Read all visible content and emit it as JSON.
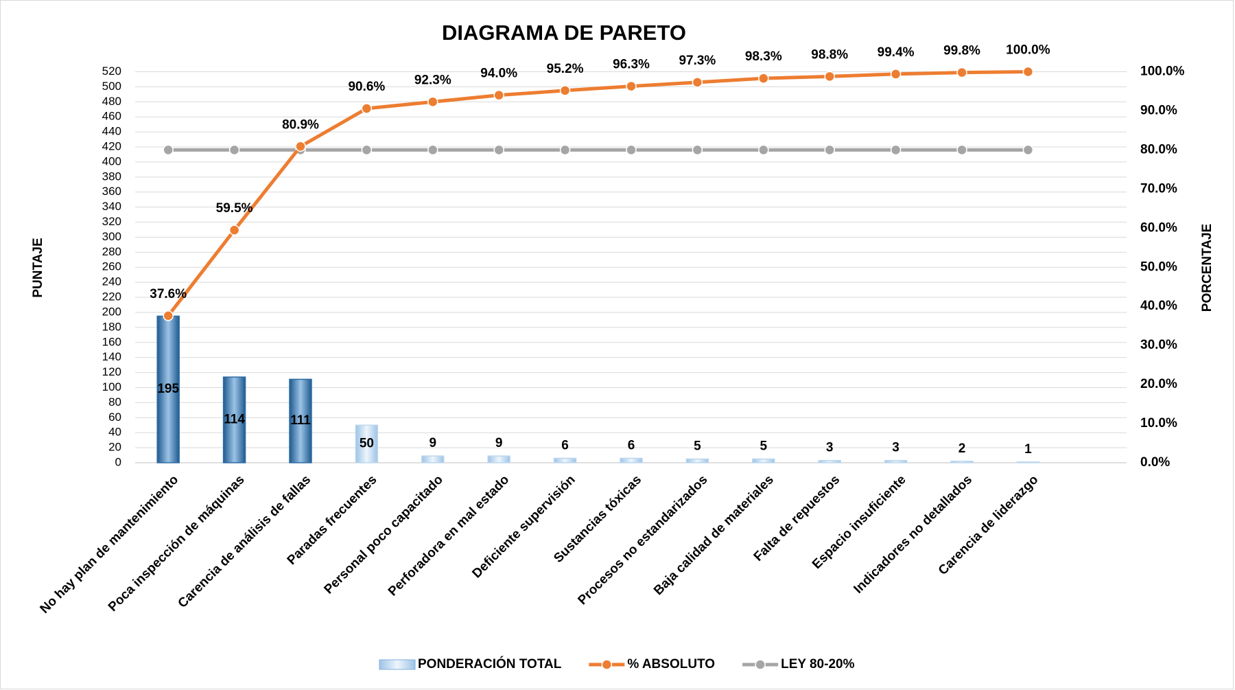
{
  "chart_data": {
    "type": "pareto",
    "title": "DIAGRAMA DE PARETO",
    "y_label": "PUNTAJE",
    "y2_label": "PORCENTAJE",
    "categories": [
      "No hay plan de mantenimiento",
      "Poca inspección de máquinas",
      "Carencia de análisis de fallas",
      "Paradas frecuentes",
      "Personal poco capacitado",
      "Perforadora en mal estado",
      "Deficiente supervisión",
      "Sustancias tóxicas",
      "Procesos no estandarizados",
      "Baja calidad de materiales",
      "Falta de repuestos",
      "Espacio insuficiente",
      "Indicadores no detallados",
      "Carencia de liderazgo"
    ],
    "series": [
      {
        "name": "PONDERACIÓN TOTAL",
        "type": "bar",
        "color": "#bdd7ee",
        "bar_colors": [
          "#2e6da4",
          "#2e6da4",
          "#2e6da4",
          "#bdd7ee",
          "#bdd7ee",
          "#bdd7ee",
          "#bdd7ee",
          "#bdd7ee",
          "#bdd7ee",
          "#bdd7ee",
          "#bdd7ee",
          "#bdd7ee",
          "#bdd7ee",
          "#bdd7ee"
        ],
        "values": [
          195,
          114,
          111,
          50,
          9,
          9,
          6,
          6,
          5,
          5,
          3,
          3,
          2,
          1
        ]
      },
      {
        "name": "% ABSOLUTO",
        "type": "line",
        "axis": "y2",
        "color": "#ed7d31",
        "values": [
          37.6,
          59.5,
          80.9,
          90.6,
          92.3,
          94.0,
          95.2,
          96.3,
          97.3,
          98.3,
          98.8,
          99.4,
          99.8,
          100.0
        ],
        "value_labels": [
          "37.6%",
          "59.5%",
          "80.9%",
          "90.6%",
          "92.3%",
          "94.0%",
          "95.2%",
          "96.3%",
          "97.3%",
          "98.3%",
          "98.8%",
          "99.4%",
          "99.8%",
          "100.0%"
        ]
      },
      {
        "name": "LEY 80-20%",
        "type": "line",
        "axis": "y2",
        "color": "#a5a5a5",
        "values": [
          80,
          80,
          80,
          80,
          80,
          80,
          80,
          80,
          80,
          80,
          80,
          80,
          80,
          80
        ]
      }
    ],
    "ylim": [
      0,
      520
    ],
    "yticks": [
      0,
      20,
      40,
      60,
      80,
      100,
      120,
      140,
      160,
      180,
      200,
      220,
      240,
      260,
      280,
      300,
      320,
      340,
      360,
      380,
      400,
      420,
      440,
      460,
      480,
      500,
      520
    ],
    "y2lim": [
      0,
      100
    ],
    "y2ticks": [
      {
        "value": 0,
        "label": "0.0%"
      },
      {
        "value": 10,
        "label": "10.0%"
      },
      {
        "value": 20,
        "label": "20.0%"
      },
      {
        "value": 30,
        "label": "30.0%"
      },
      {
        "value": 40,
        "label": "40.0%"
      },
      {
        "value": 50,
        "label": "50.0%"
      },
      {
        "value": 60,
        "label": "60.0%"
      },
      {
        "value": 70,
        "label": "70.0%"
      },
      {
        "value": 80,
        "label": "80.0%"
      },
      {
        "value": 90,
        "label": "90.0%"
      },
      {
        "value": 100,
        "label": "100.0%"
      }
    ],
    "grid": true,
    "legend": "bottom"
  }
}
